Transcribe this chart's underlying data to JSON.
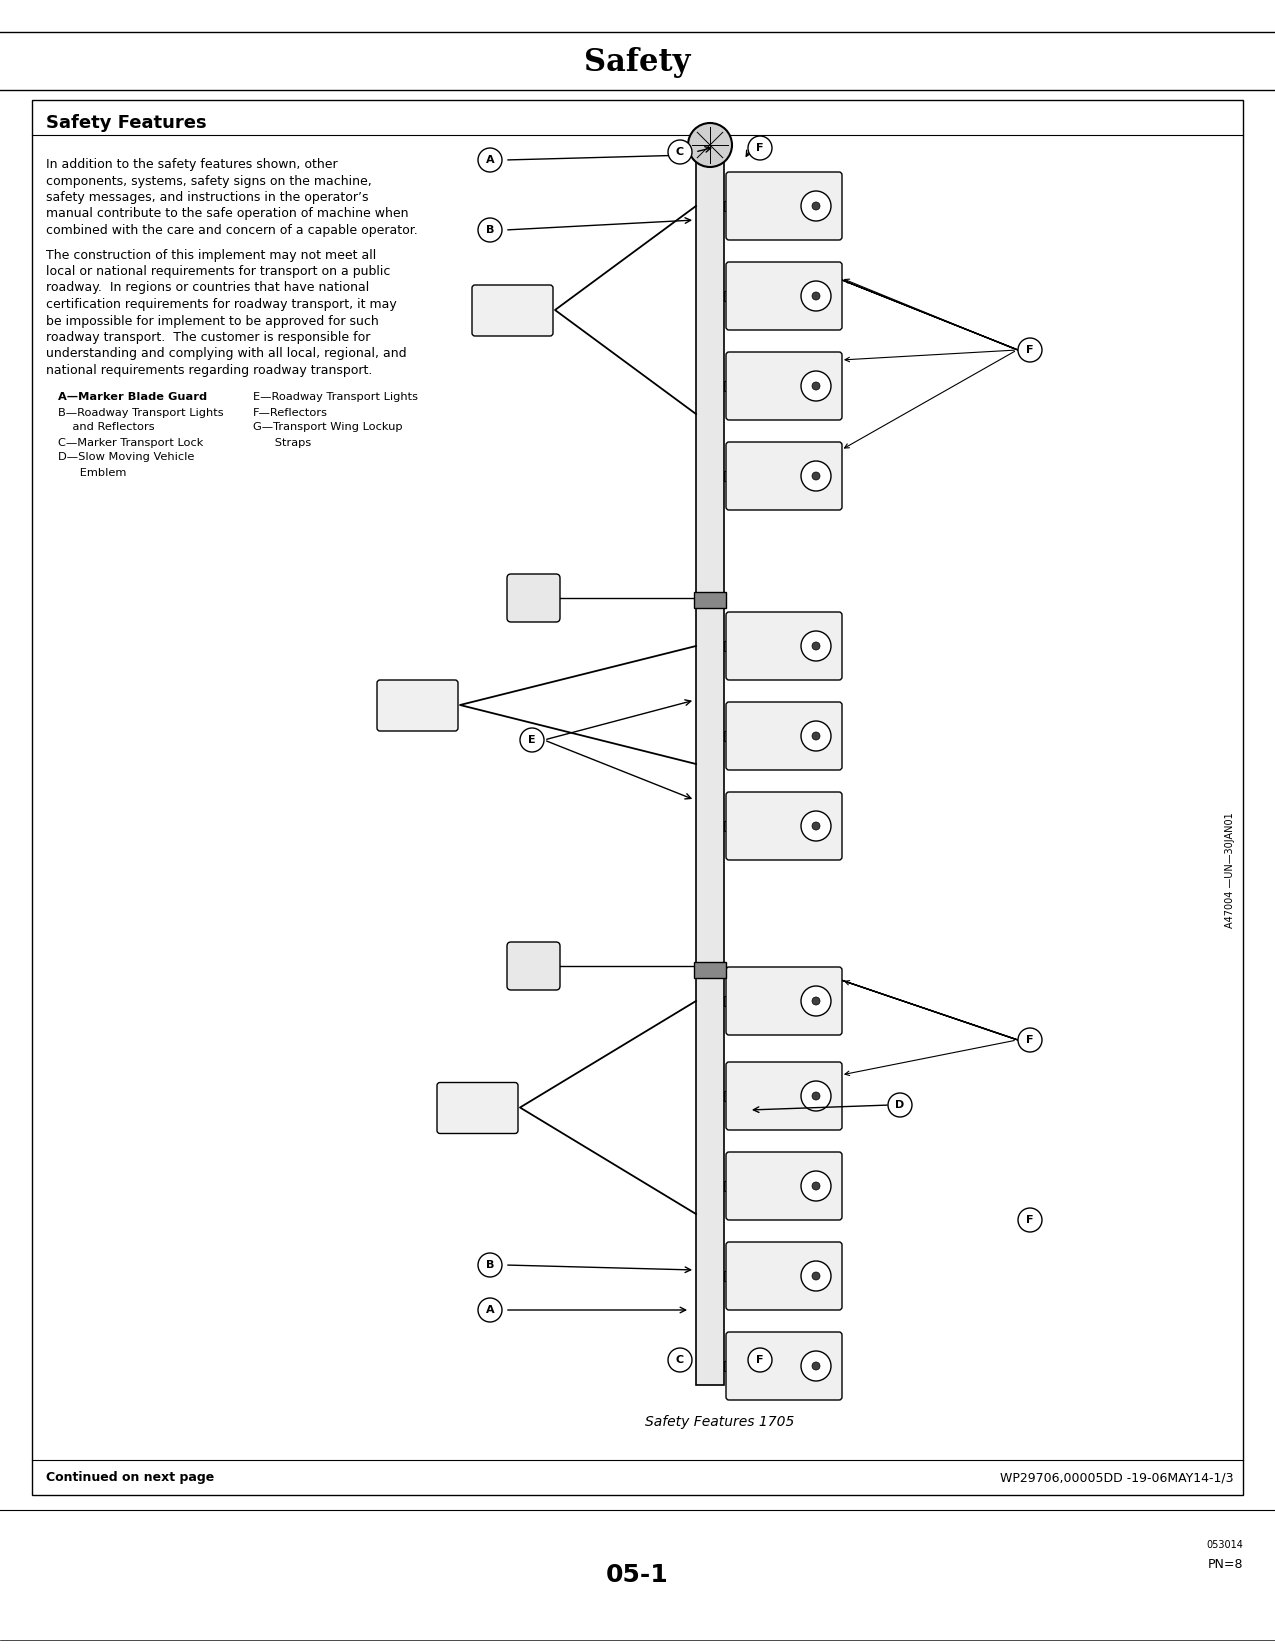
{
  "title": "Safety",
  "section_title": "Safety Features",
  "body1_lines": [
    "In addition to the safety features shown, other",
    "components, systems, safety signs on the machine,",
    "safety messages, and instructions in the operator’s",
    "manual contribute to the safe operation of machine when",
    "combined with the care and concern of a capable operator."
  ],
  "body2_lines": [
    "The construction of this implement may not meet all",
    "local or national requirements for transport on a public",
    "roadway.  In regions or countries that have national",
    "certification requirements for roadway transport, it may",
    "be impossible for implement to be approved for such",
    "roadway transport.  The customer is responsible for",
    "understanding and complying with all local, regional, and",
    "national requirements regarding roadway transport."
  ],
  "legend_col1": [
    "A—Marker Blade Guard",
    "B—Roadway Transport Lights",
    "    and Reflectors",
    "C—Marker Transport Lock",
    "D—Slow Moving Vehicle",
    "      Emblem"
  ],
  "legend_col2": [
    "E—Roadway Transport Lights",
    "F—Reflectors",
    "G—Transport Wing Lockup",
    "      Straps"
  ],
  "caption": "Safety Features 1705",
  "continued": "Continued on next page",
  "doc_ref": "WP29706,00005DD -19-06MAY14-1/3",
  "page_number": "05-1",
  "page_ref_small": "053014",
  "page_ref": "PN=8",
  "side_ref": "A47004 —UN—30JAN01"
}
